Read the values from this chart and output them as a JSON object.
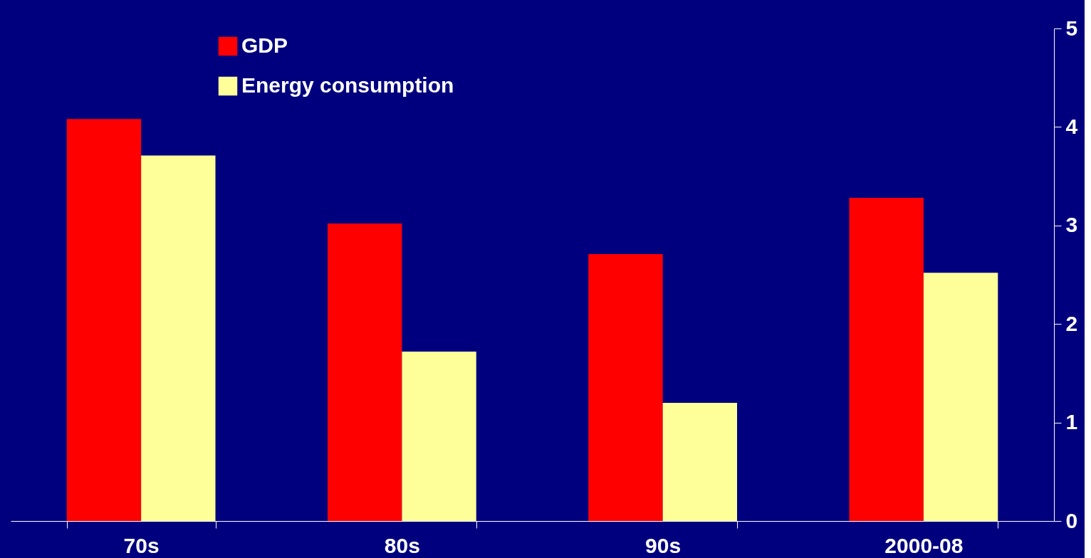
{
  "chart_data": {
    "type": "bar",
    "categories": [
      "70s",
      "80s",
      "90s",
      "2000-08"
    ],
    "series": [
      {
        "name": "GDP",
        "color": "#ff0000",
        "values": [
          4.08,
          3.02,
          2.71,
          3.28
        ]
      },
      {
        "name": "Energy consumption",
        "color": "#ffff99",
        "values": [
          3.71,
          1.72,
          1.2,
          2.52
        ]
      }
    ],
    "ylim": [
      0,
      5
    ],
    "yticks": [
      0,
      1,
      2,
      3,
      4,
      5
    ],
    "grid": false,
    "legend": "top left"
  }
}
